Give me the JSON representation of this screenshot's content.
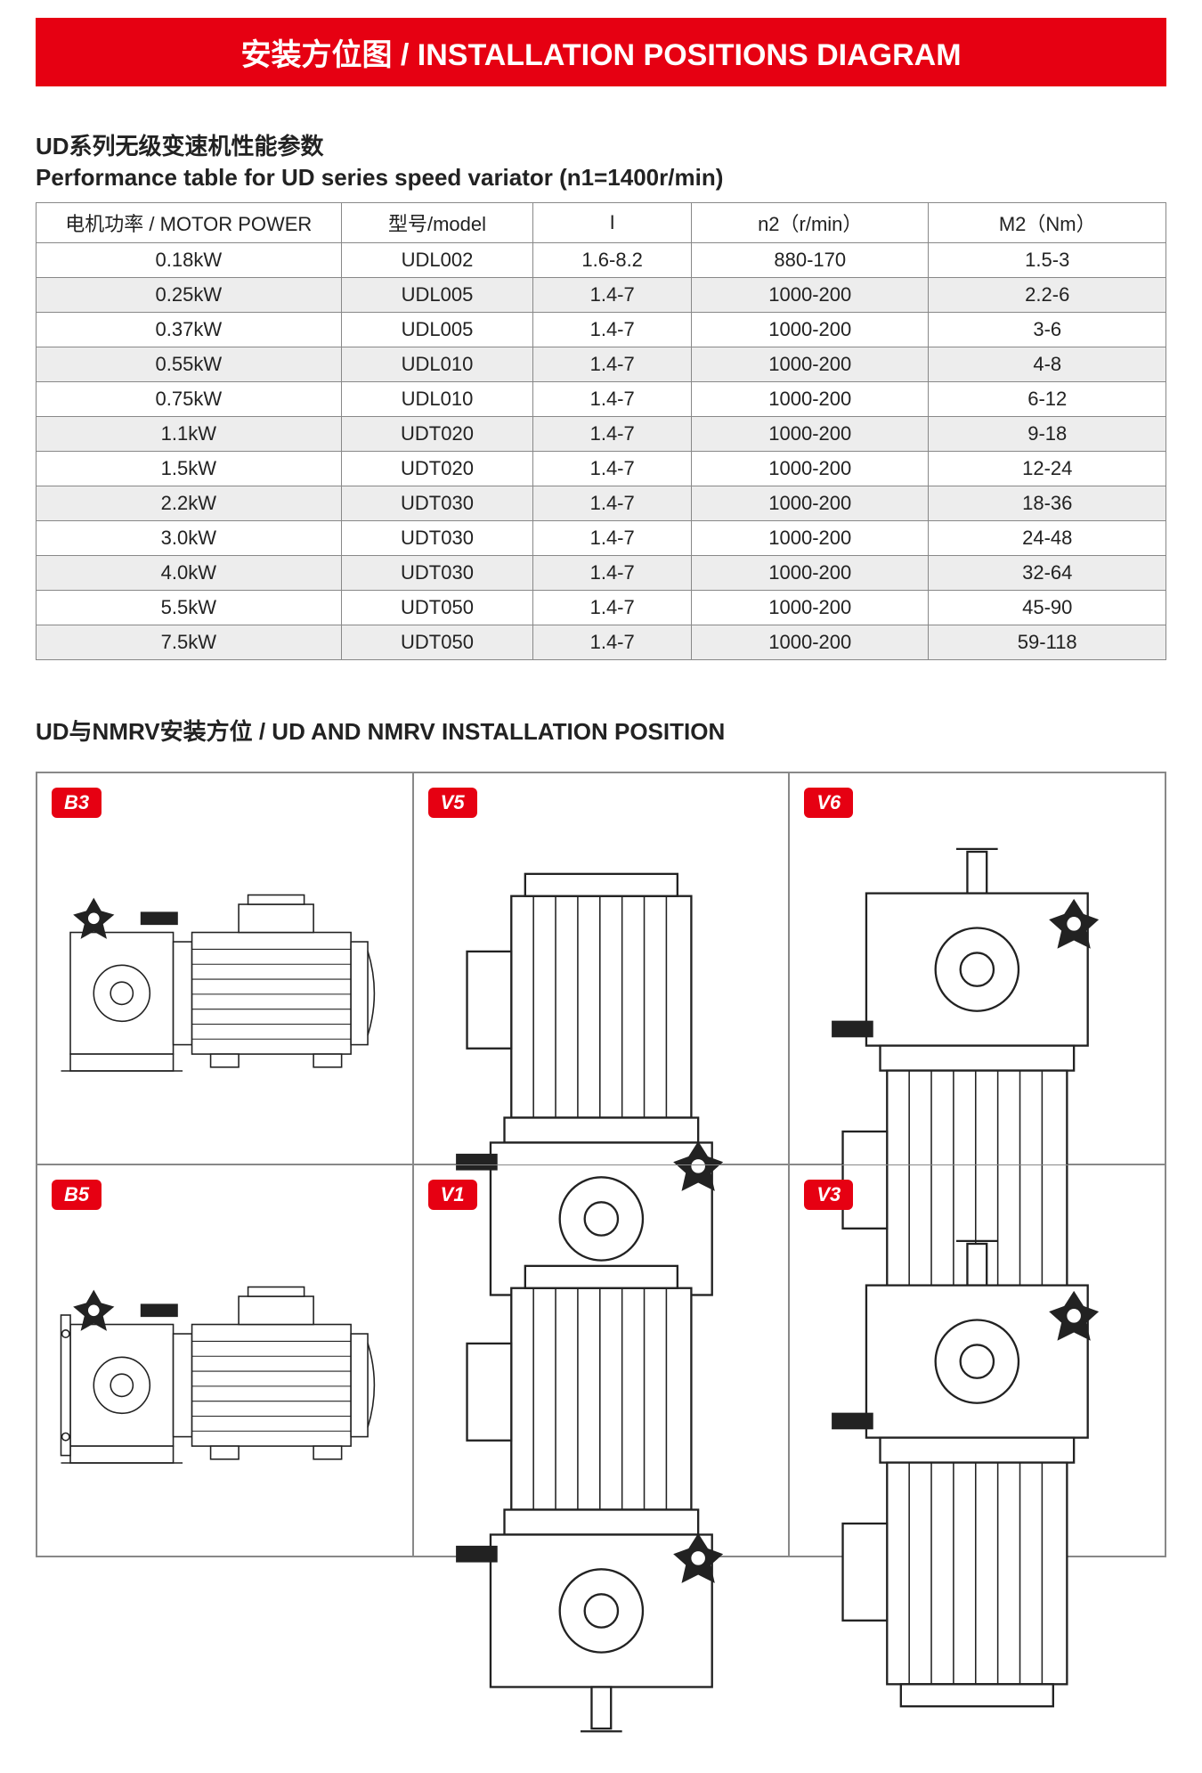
{
  "banner": {
    "text": "安装方位图 / INSTALLATION POSITIONS DIAGRAM"
  },
  "perf": {
    "title_zh": "UD系列无级变速机性能参数",
    "title_en": "Performance table for UD series speed variator (n1=1400r/min)",
    "columns": [
      "电机功率 / MOTOR POWER",
      "型号/model",
      "I",
      "n2（r/min）",
      "M2（Nm）"
    ],
    "col_widths_pct": [
      27,
      17,
      14,
      21,
      21
    ],
    "rows": [
      [
        "0.18kW",
        "UDL002",
        "1.6-8.2",
        "880-170",
        "1.5-3"
      ],
      [
        "0.25kW",
        "UDL005",
        "1.4-7",
        "1000-200",
        "2.2-6"
      ],
      [
        "0.37kW",
        "UDL005",
        "1.4-7",
        "1000-200",
        "3-6"
      ],
      [
        "0.55kW",
        "UDL010",
        "1.4-7",
        "1000-200",
        "4-8"
      ],
      [
        "0.75kW",
        "UDL010",
        "1.4-7",
        "1000-200",
        "6-12"
      ],
      [
        "1.1kW",
        "UDT020",
        "1.4-7",
        "1000-200",
        "9-18"
      ],
      [
        "1.5kW",
        "UDT020",
        "1.4-7",
        "1000-200",
        "12-24"
      ],
      [
        "2.2kW",
        "UDT030",
        "1.4-7",
        "1000-200",
        "18-36"
      ],
      [
        "3.0kW",
        "UDT030",
        "1.4-7",
        "1000-200",
        "24-48"
      ],
      [
        "4.0kW",
        "UDT030",
        "1.4-7",
        "1000-200",
        "32-64"
      ],
      [
        "5.5kW",
        "UDT050",
        "1.4-7",
        "1000-200",
        "45-90"
      ],
      [
        "7.5kW",
        "UDT050",
        "1.4-7",
        "1000-200",
        "59-118"
      ]
    ],
    "row_alt_bg": "#ededed",
    "row_bg": "#ffffff",
    "border_color": "#888888",
    "font_size_pt": 16
  },
  "positions": {
    "title": "UD与NMRV安装方位 / UD AND NMRV INSTALLATION POSITION",
    "badge_bg": "#e60012",
    "badge_color": "#ffffff",
    "cells": [
      {
        "label": "B3",
        "orient": "horizontal",
        "variant": "foot"
      },
      {
        "label": "V5",
        "orient": "vertical",
        "variant": "down"
      },
      {
        "label": "V6",
        "orient": "vertical",
        "variant": "up"
      },
      {
        "label": "B5",
        "orient": "horizontal",
        "variant": "flange"
      },
      {
        "label": "V1",
        "orient": "vertical",
        "variant": "flange-down"
      },
      {
        "label": "V3",
        "orient": "vertical",
        "variant": "flange-up"
      }
    ]
  },
  "colors": {
    "accent": "#e60012",
    "text": "#222222",
    "bg": "#ffffff"
  }
}
